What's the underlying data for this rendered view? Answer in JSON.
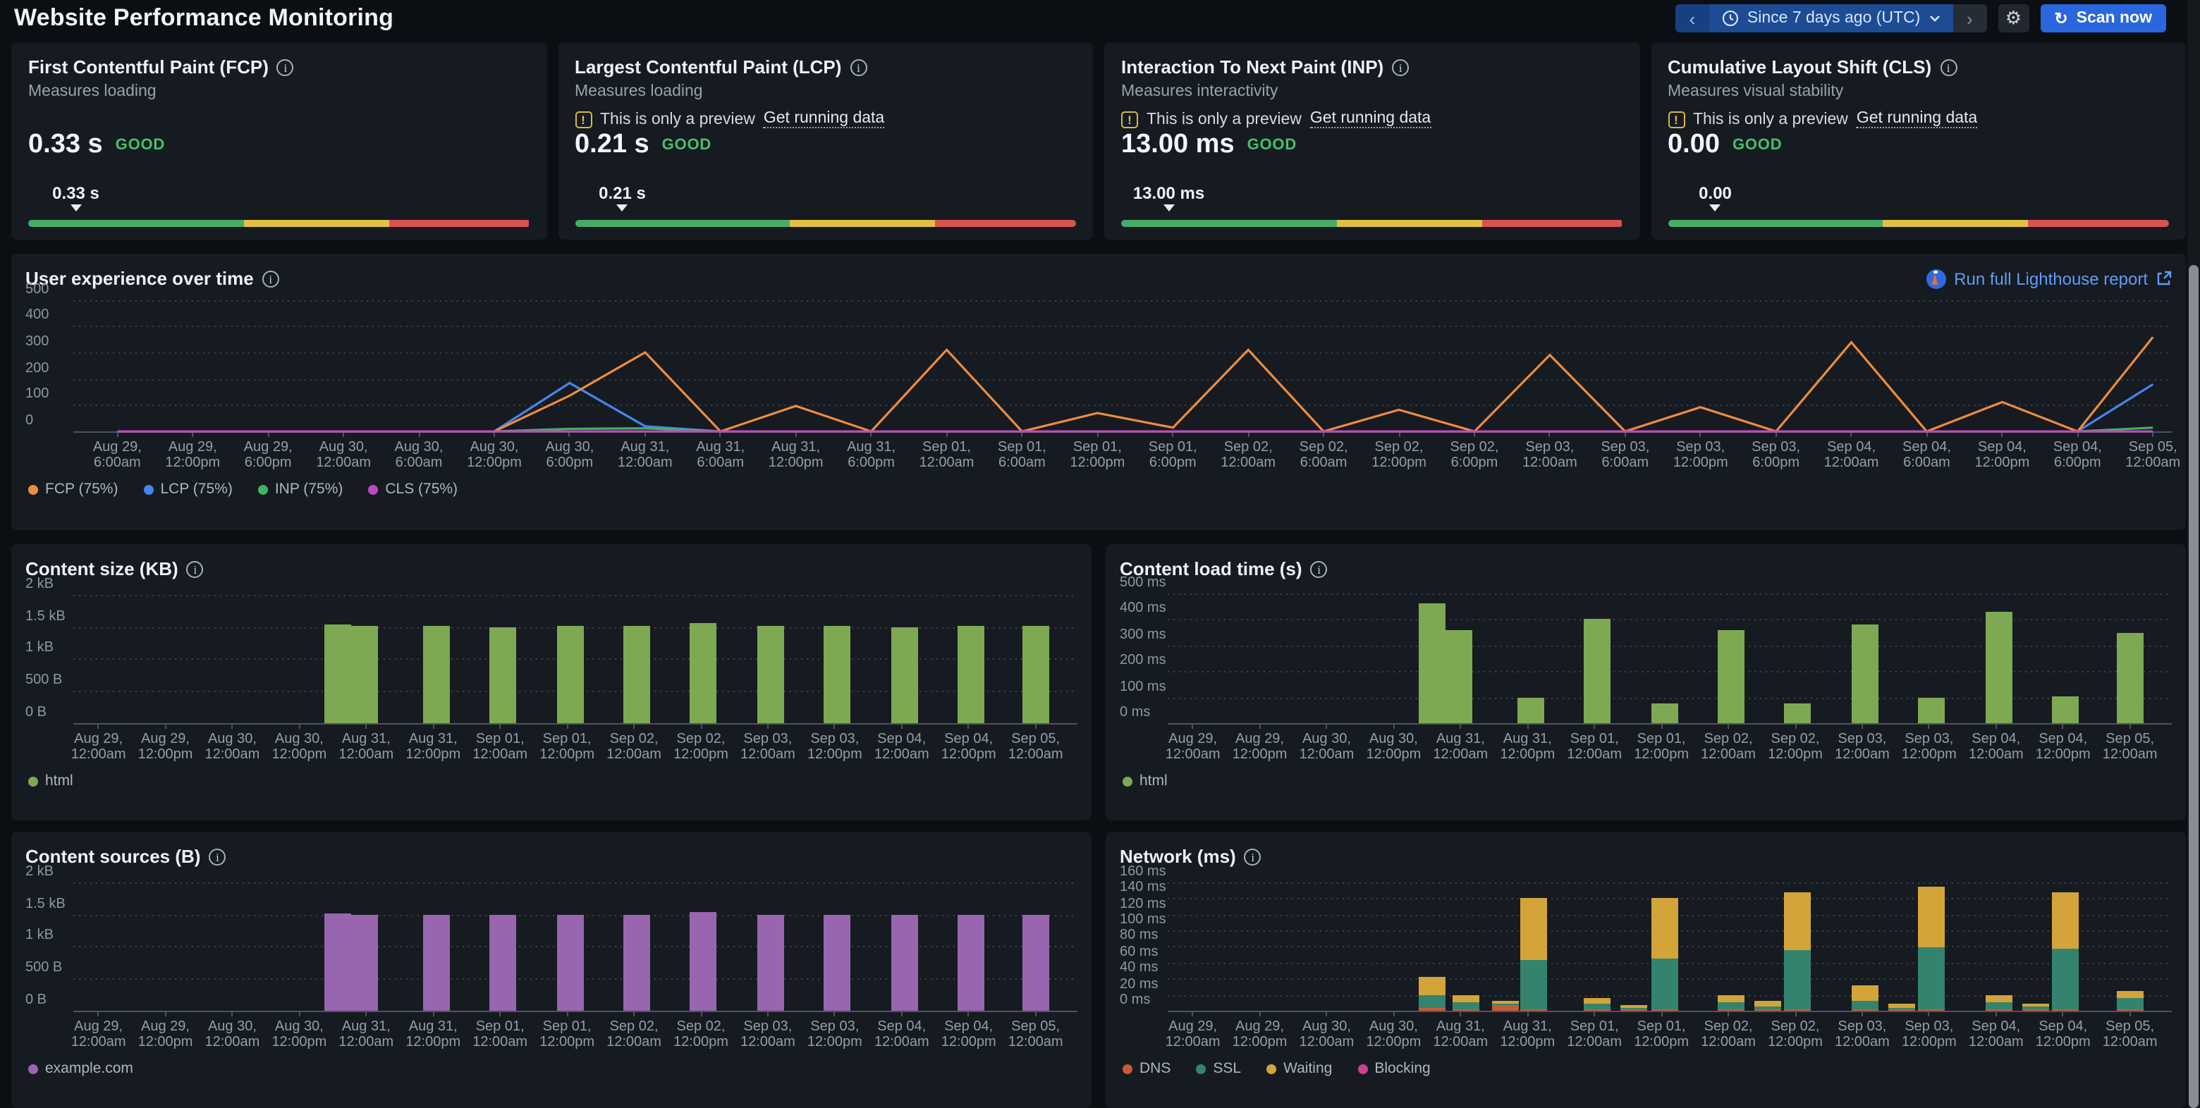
{
  "header": {
    "title": "Website Performance Monitoring",
    "prev_label": "‹",
    "next_label": "›",
    "time_range": "Since 7 days ago (UTC)",
    "gear_label": "⚙",
    "scan_icon": "↻",
    "scan_label": "Scan now"
  },
  "preview_banner": {
    "text": "This is only a preview",
    "link": "Get running data"
  },
  "gauge": {
    "segments": [
      {
        "color": "#49ab68",
        "pct": 43
      },
      {
        "color": "#e3c043",
        "pct": 29
      },
      {
        "color": "#d9534f",
        "pct": 28
      }
    ]
  },
  "metric_cards": [
    {
      "title": "First Contentful Paint (FCP)",
      "subtitle": "Measures loading",
      "preview": false,
      "value": "0.33 s",
      "status": "GOOD",
      "marker_label": "0.33 s",
      "marker_pos_pct": 9.5
    },
    {
      "title": "Largest Contentful Paint (LCP)",
      "subtitle": "Measures loading",
      "preview": true,
      "value": "0.21 s",
      "status": "GOOD",
      "marker_label": "0.21 s",
      "marker_pos_pct": 9.5
    },
    {
      "title": "Interaction To Next Paint (INP)",
      "subtitle": "Measures interactivity",
      "preview": true,
      "value": "13.00 ms",
      "status": "GOOD",
      "marker_label": "13.00 ms",
      "marker_pos_pct": 9.5
    },
    {
      "title": "Cumulative Layout Shift (CLS)",
      "subtitle": "Measures visual stability",
      "preview": true,
      "value": "0.00",
      "status": "GOOD",
      "marker_label": "0.00",
      "marker_pos_pct": 9.5
    }
  ],
  "lighthouse_link": {
    "label": "Run full Lighthouse report"
  },
  "chart_data": [
    {
      "type": "line",
      "title": "User experience over time",
      "ymax": 515,
      "yticks": [
        {
          "v": 0,
          "label": "0"
        },
        {
          "v": 100,
          "label": "100"
        },
        {
          "v": 200,
          "label": "200"
        },
        {
          "v": 300,
          "label": "300"
        },
        {
          "v": 400,
          "label": "400"
        },
        {
          "v": 500,
          "label": "500"
        }
      ],
      "x_tick_labels": [
        [
          "Aug 29,",
          "6:00am"
        ],
        [
          "Aug 29,",
          "12:00pm"
        ],
        [
          "Aug 29,",
          "6:00pm"
        ],
        [
          "Aug 30,",
          "12:00am"
        ],
        [
          "Aug 30,",
          "6:00am"
        ],
        [
          "Aug 30,",
          "12:00pm"
        ],
        [
          "Aug 30,",
          "6:00pm"
        ],
        [
          "Aug 31,",
          "12:00am"
        ],
        [
          "Aug 31,",
          "6:00am"
        ],
        [
          "Aug 31,",
          "12:00pm"
        ],
        [
          "Aug 31,",
          "6:00pm"
        ],
        [
          "Sep 01,",
          "12:00am"
        ],
        [
          "Sep 01,",
          "6:00am"
        ],
        [
          "Sep 01,",
          "12:00pm"
        ],
        [
          "Sep 01,",
          "6:00pm"
        ],
        [
          "Sep 02,",
          "12:00am"
        ],
        [
          "Sep 02,",
          "6:00am"
        ],
        [
          "Sep 02,",
          "12:00pm"
        ],
        [
          "Sep 02,",
          "6:00pm"
        ],
        [
          "Sep 03,",
          "12:00am"
        ],
        [
          "Sep 03,",
          "6:00am"
        ],
        [
          "Sep 03,",
          "12:00pm"
        ],
        [
          "Sep 03,",
          "6:00pm"
        ],
        [
          "Sep 04,",
          "12:00am"
        ],
        [
          "Sep 04,",
          "6:00am"
        ],
        [
          "Sep 04,",
          "12:00pm"
        ],
        [
          "Sep 04,",
          "6:00pm"
        ],
        [
          "Sep 05,",
          "12:00am"
        ]
      ],
      "series": [
        {
          "name": "FCP (75%)",
          "color": "#ee8c3e",
          "values": [
            0,
            0,
            0,
            0,
            0,
            0,
            140,
            310,
            0,
            100,
            0,
            320,
            0,
            72,
            15,
            320,
            0,
            85,
            0,
            300,
            0,
            95,
            0,
            350,
            0,
            115,
            0,
            370
          ]
        },
        {
          "name": "LCP (75%)",
          "color": "#4486ee",
          "values": [
            0,
            0,
            0,
            0,
            0,
            0,
            190,
            20,
            0,
            0,
            0,
            0,
            0,
            0,
            0,
            0,
            0,
            0,
            0,
            0,
            0,
            0,
            0,
            0,
            0,
            0,
            0,
            185
          ]
        },
        {
          "name": "INP (75%)",
          "color": "#41b35e",
          "values": [
            0,
            0,
            0,
            0,
            0,
            0,
            10,
            12,
            0,
            0,
            0,
            0,
            0,
            0,
            0,
            0,
            0,
            0,
            0,
            0,
            0,
            0,
            0,
            0,
            0,
            0,
            0,
            15
          ]
        },
        {
          "name": "CLS (75%)",
          "color": "#bd4abd",
          "values": [
            0,
            0,
            0,
            0,
            0,
            0,
            0,
            0,
            0,
            0,
            0,
            0,
            0,
            0,
            0,
            0,
            0,
            0,
            0,
            0,
            0,
            0,
            0,
            0,
            0,
            0,
            0,
            0
          ]
        }
      ]
    },
    {
      "type": "bar",
      "title": "Content size (KB)",
      "ymax": 2130,
      "yticks": [
        {
          "v": 0,
          "label": "0 B"
        },
        {
          "v": 500,
          "label": "500 B"
        },
        {
          "v": 1000,
          "label": "1 kB"
        },
        {
          "v": 1500,
          "label": "1.5 kB"
        },
        {
          "v": 2000,
          "label": "2 kB"
        }
      ],
      "ticks_hours": [
        0,
        12,
        24,
        36,
        48,
        60,
        72,
        84,
        96,
        108,
        120,
        132,
        144,
        156,
        168
      ],
      "x_tick_labels": [
        [
          "Aug 29,",
          "12:00am"
        ],
        [
          "Aug 29,",
          "12:00pm"
        ],
        [
          "Aug 30,",
          "12:00am"
        ],
        [
          "Aug 30,",
          "12:00pm"
        ],
        [
          "Aug 31,",
          "12:00am"
        ],
        [
          "Aug 31,",
          "12:00pm"
        ],
        [
          "Sep 01,",
          "12:00am"
        ],
        [
          "Sep 01,",
          "12:00pm"
        ],
        [
          "Sep 02,",
          "12:00am"
        ],
        [
          "Sep 02,",
          "12:00pm"
        ],
        [
          "Sep 03,",
          "12:00am"
        ],
        [
          "Sep 03,",
          "12:00pm"
        ],
        [
          "Sep 04,",
          "12:00am"
        ],
        [
          "Sep 04,",
          "12:00pm"
        ],
        [
          "Sep 05,",
          "12:00am"
        ]
      ],
      "legend": [
        {
          "name": "html",
          "color": "#7ea952"
        }
      ],
      "bars": [
        {
          "t": 43,
          "values": [
            1530
          ]
        },
        {
          "t": 47.8,
          "values": [
            1510
          ]
        },
        {
          "t": 60.5,
          "values": [
            1505
          ]
        },
        {
          "t": 72.5,
          "values": [
            1500
          ]
        },
        {
          "t": 84.5,
          "values": [
            1505
          ]
        },
        {
          "t": 96.5,
          "values": [
            1505
          ]
        },
        {
          "t": 108.5,
          "values": [
            1560
          ]
        },
        {
          "t": 120.5,
          "values": [
            1515
          ]
        },
        {
          "t": 132.5,
          "values": [
            1505
          ]
        },
        {
          "t": 144.5,
          "values": [
            1500
          ]
        },
        {
          "t": 156.5,
          "values": [
            1505
          ]
        },
        {
          "t": 168,
          "values": [
            1505
          ]
        }
      ]
    },
    {
      "type": "bar",
      "title": "Content load time (s)",
      "ymax": 525,
      "yticks": [
        {
          "v": 0,
          "label": "0 ms"
        },
        {
          "v": 100,
          "label": "100 ms"
        },
        {
          "v": 200,
          "label": "200 ms"
        },
        {
          "v": 300,
          "label": "300 ms"
        },
        {
          "v": 400,
          "label": "400 ms"
        },
        {
          "v": 500,
          "label": "500 ms"
        }
      ],
      "ticks_hours": [
        0,
        12,
        24,
        36,
        48,
        60,
        72,
        84,
        96,
        108,
        120,
        132,
        144,
        156,
        168
      ],
      "x_tick_labels": [
        [
          "Aug 29,",
          "12:00am"
        ],
        [
          "Aug 29,",
          "12:00pm"
        ],
        [
          "Aug 30,",
          "12:00am"
        ],
        [
          "Aug 30,",
          "12:00pm"
        ],
        [
          "Aug 31,",
          "12:00am"
        ],
        [
          "Aug 31,",
          "12:00pm"
        ],
        [
          "Sep 01,",
          "12:00am"
        ],
        [
          "Sep 01,",
          "12:00pm"
        ],
        [
          "Sep 02,",
          "12:00am"
        ],
        [
          "Sep 02,",
          "12:00pm"
        ],
        [
          "Sep 03,",
          "12:00am"
        ],
        [
          "Sep 03,",
          "12:00pm"
        ],
        [
          "Sep 04,",
          "12:00am"
        ],
        [
          "Sep 04,",
          "12:00pm"
        ],
        [
          "Sep 05,",
          "12:00am"
        ]
      ],
      "legend": [
        {
          "name": "html",
          "color": "#7ea952"
        }
      ],
      "bars": [
        {
          "t": 43,
          "values": [
            460
          ]
        },
        {
          "t": 47.8,
          "values": [
            360
          ]
        },
        {
          "t": 60.5,
          "values": [
            95
          ]
        },
        {
          "t": 72.5,
          "values": [
            400
          ]
        },
        {
          "t": 84.5,
          "values": [
            75
          ]
        },
        {
          "t": 96.5,
          "values": [
            355
          ]
        },
        {
          "t": 108.5,
          "values": [
            75
          ]
        },
        {
          "t": 120.5,
          "values": [
            380
          ]
        },
        {
          "t": 132.5,
          "values": [
            95
          ]
        },
        {
          "t": 144.5,
          "values": [
            425
          ]
        },
        {
          "t": 156.5,
          "values": [
            105
          ]
        },
        {
          "t": 168,
          "values": [
            345
          ]
        }
      ]
    },
    {
      "type": "bar",
      "title": "Content sources (B)",
      "ymax": 2130,
      "yticks": [
        {
          "v": 0,
          "label": "0 B"
        },
        {
          "v": 500,
          "label": "500 B"
        },
        {
          "v": 1000,
          "label": "1 kB"
        },
        {
          "v": 1500,
          "label": "1.5 kB"
        },
        {
          "v": 2000,
          "label": "2 kB"
        }
      ],
      "ticks_hours": [
        0,
        12,
        24,
        36,
        48,
        60,
        72,
        84,
        96,
        108,
        120,
        132,
        144,
        156,
        168
      ],
      "x_tick_labels": [
        [
          "Aug 29,",
          "12:00am"
        ],
        [
          "Aug 29,",
          "12:00pm"
        ],
        [
          "Aug 30,",
          "12:00am"
        ],
        [
          "Aug 30,",
          "12:00pm"
        ],
        [
          "Aug 31,",
          "12:00am"
        ],
        [
          "Aug 31,",
          "12:00pm"
        ],
        [
          "Sep 01,",
          "12:00am"
        ],
        [
          "Sep 01,",
          "12:00pm"
        ],
        [
          "Sep 02,",
          "12:00am"
        ],
        [
          "Sep 02,",
          "12:00pm"
        ],
        [
          "Sep 03,",
          "12:00am"
        ],
        [
          "Sep 03,",
          "12:00pm"
        ],
        [
          "Sep 04,",
          "12:00am"
        ],
        [
          "Sep 04,",
          "12:00pm"
        ],
        [
          "Sep 05,",
          "12:00am"
        ]
      ],
      "legend": [
        {
          "name": "example.com",
          "color": "#9766ae"
        }
      ],
      "bars": [
        {
          "t": 43,
          "values": [
            1520
          ]
        },
        {
          "t": 47.8,
          "values": [
            1500
          ]
        },
        {
          "t": 60.5,
          "values": [
            1500
          ]
        },
        {
          "t": 72.5,
          "values": [
            1500
          ]
        },
        {
          "t": 84.5,
          "values": [
            1500
          ]
        },
        {
          "t": 96.5,
          "values": [
            1500
          ]
        },
        {
          "t": 108.5,
          "values": [
            1545
          ]
        },
        {
          "t": 120.5,
          "values": [
            1500
          ]
        },
        {
          "t": 132.5,
          "values": [
            1500
          ]
        },
        {
          "t": 144.5,
          "values": [
            1500
          ]
        },
        {
          "t": 156.5,
          "values": [
            1500
          ]
        },
        {
          "t": 168,
          "values": [
            1500
          ]
        }
      ]
    },
    {
      "type": "bar",
      "title": "Network (ms)",
      "ymax": 170,
      "yticks": [
        {
          "v": 0,
          "label": "0 ms"
        },
        {
          "v": 20,
          "label": "20 ms"
        },
        {
          "v": 40,
          "label": "40 ms"
        },
        {
          "v": 60,
          "label": "60 ms"
        },
        {
          "v": 80,
          "label": "80 ms"
        },
        {
          "v": 100,
          "label": "100 ms"
        },
        {
          "v": 120,
          "label": "120 ms"
        },
        {
          "v": 140,
          "label": "140 ms"
        },
        {
          "v": 160,
          "label": "160 ms"
        }
      ],
      "ticks_hours": [
        0,
        12,
        24,
        36,
        48,
        60,
        72,
        84,
        96,
        108,
        120,
        132,
        144,
        156,
        168
      ],
      "x_tick_labels": [
        [
          "Aug 29,",
          "12:00am"
        ],
        [
          "Aug 29,",
          "12:00pm"
        ],
        [
          "Aug 30,",
          "12:00am"
        ],
        [
          "Aug 30,",
          "12:00pm"
        ],
        [
          "Aug 31,",
          "12:00am"
        ],
        [
          "Aug 31,",
          "12:00pm"
        ],
        [
          "Sep 01,",
          "12:00am"
        ],
        [
          "Sep 01,",
          "12:00pm"
        ],
        [
          "Sep 02,",
          "12:00am"
        ],
        [
          "Sep 02,",
          "12:00pm"
        ],
        [
          "Sep 03,",
          "12:00am"
        ],
        [
          "Sep 03,",
          "12:00pm"
        ],
        [
          "Sep 04,",
          "12:00am"
        ],
        [
          "Sep 04,",
          "12:00pm"
        ],
        [
          "Sep 05,",
          "12:00am"
        ]
      ],
      "legend": [
        {
          "name": "DNS",
          "color": "#c75b36"
        },
        {
          "name": "SSL",
          "color": "#34836e"
        },
        {
          "name": "Waiting",
          "color": "#d3a438"
        },
        {
          "name": "Blocking",
          "color": "#cc3f92"
        }
      ],
      "bars": [
        {
          "t": 43,
          "values": [
            3,
            17,
            22,
            0
          ]
        },
        {
          "t": 49,
          "values": [
            2,
            9,
            9,
            0
          ]
        },
        {
          "t": 56,
          "values": [
            7,
            2,
            3,
            0
          ]
        },
        {
          "t": 61,
          "values": [
            2,
            62,
            76,
            0
          ]
        },
        {
          "t": 72.5,
          "values": [
            2,
            6,
            7,
            0
          ]
        },
        {
          "t": 79,
          "values": [
            1.5,
            2.5,
            3,
            0
          ]
        },
        {
          "t": 84.5,
          "values": [
            2,
            63,
            75,
            0
          ]
        },
        {
          "t": 96.5,
          "values": [
            2.5,
            8.5,
            9,
            0
          ]
        },
        {
          "t": 103,
          "values": [
            2,
            4,
            6,
            0
          ]
        },
        {
          "t": 108.5,
          "values": [
            2,
            74,
            72,
            0
          ]
        },
        {
          "t": 120.5,
          "values": [
            2.5,
            10,
            20,
            0
          ]
        },
        {
          "t": 127,
          "values": [
            1,
            3,
            4,
            0
          ]
        },
        {
          "t": 132.5,
          "values": [
            2,
            77,
            76,
            0
          ]
        },
        {
          "t": 144.5,
          "values": [
            2,
            9,
            9,
            0
          ]
        },
        {
          "t": 151,
          "values": [
            1.5,
            3,
            4.5,
            0
          ]
        },
        {
          "t": 156.5,
          "values": [
            2,
            75,
            71,
            0
          ]
        },
        {
          "t": 168,
          "values": [
            2.5,
            14,
            7.5,
            0
          ]
        }
      ]
    }
  ]
}
